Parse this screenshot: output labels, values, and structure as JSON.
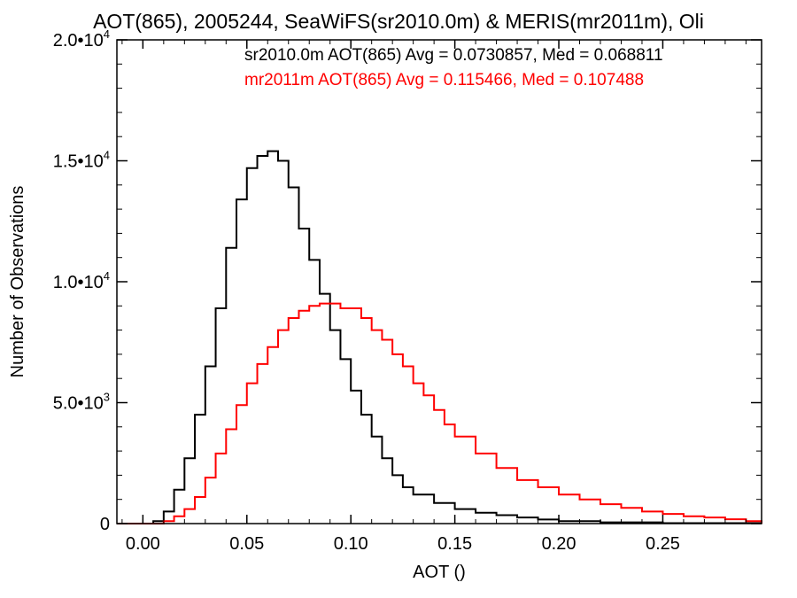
{
  "chart_data": {
    "type": "line",
    "title": "AOT(865), 2005244, SeaWiFS(sr2010.0m) & MERIS(mr2011m), Oli",
    "xlabel": "AOT ()",
    "ylabel": "Number of Observations",
    "xlim": [
      -0.0125,
      0.2975
    ],
    "ylim": [
      0,
      20000
    ],
    "xticks": [
      {
        "value": 0.0,
        "label": "0.00"
      },
      {
        "value": 0.05,
        "label": "0.05"
      },
      {
        "value": 0.1,
        "label": "0.10"
      },
      {
        "value": 0.15,
        "label": "0.15"
      },
      {
        "value": 0.2,
        "label": "0.20"
      },
      {
        "value": 0.25,
        "label": "0.25"
      }
    ],
    "yticks": [
      {
        "value": 0,
        "mant": "0",
        "exp": ""
      },
      {
        "value": 5000,
        "mant": "5.0•10",
        "exp": "3"
      },
      {
        "value": 10000,
        "mant": "1.0•10",
        "exp": "4"
      },
      {
        "value": 15000,
        "mant": "1.5•10",
        "exp": "4"
      },
      {
        "value": 20000,
        "mant": "2.0•10",
        "exp": "4"
      }
    ],
    "grid": false,
    "legend_position": "top-right",
    "series": [
      {
        "name": "sr2010.0m AOT(865) Avg = 0.0730857, Med = 0.068811",
        "color": "#000000",
        "x": [
          -0.0125,
          0.0,
          0.005,
          0.01,
          0.015,
          0.02,
          0.025,
          0.03,
          0.035,
          0.04,
          0.045,
          0.05,
          0.055,
          0.06,
          0.065,
          0.07,
          0.075,
          0.08,
          0.085,
          0.09,
          0.095,
          0.1,
          0.105,
          0.11,
          0.115,
          0.12,
          0.125,
          0.13,
          0.14,
          0.15,
          0.16,
          0.17,
          0.18,
          0.19,
          0.2,
          0.22,
          0.25,
          0.2975
        ],
        "y": [
          0,
          0,
          100,
          500,
          1400,
          2700,
          4500,
          6500,
          8900,
          11400,
          13400,
          14700,
          15200,
          15400,
          15000,
          13900,
          12200,
          10900,
          9500,
          8000,
          6800,
          5500,
          4500,
          3600,
          2700,
          2000,
          1500,
          1200,
          850,
          600,
          450,
          350,
          250,
          170,
          100,
          50,
          20,
          0
        ]
      },
      {
        "name": "mr2011m AOT(865) Avg = 0.115466, Med = 0.107488",
        "color": "#ff0000",
        "x": [
          -0.0125,
          0.0,
          0.01,
          0.015,
          0.02,
          0.025,
          0.03,
          0.035,
          0.04,
          0.045,
          0.05,
          0.055,
          0.06,
          0.065,
          0.07,
          0.075,
          0.08,
          0.085,
          0.09,
          0.095,
          0.1,
          0.105,
          0.11,
          0.115,
          0.12,
          0.125,
          0.13,
          0.135,
          0.14,
          0.145,
          0.15,
          0.16,
          0.17,
          0.18,
          0.19,
          0.2,
          0.21,
          0.22,
          0.23,
          0.24,
          0.25,
          0.26,
          0.27,
          0.28,
          0.29,
          0.2975
        ],
        "y": [
          0,
          0,
          100,
          300,
          600,
          1100,
          1900,
          2900,
          3900,
          4900,
          5800,
          6600,
          7300,
          8000,
          8500,
          8800,
          9000,
          9100,
          9100,
          8900,
          8900,
          8500,
          8000,
          7600,
          7000,
          6500,
          5800,
          5300,
          4700,
          4100,
          3600,
          2900,
          2300,
          1800,
          1500,
          1200,
          1000,
          800,
          650,
          500,
          400,
          300,
          250,
          180,
          100,
          0
        ]
      }
    ]
  }
}
